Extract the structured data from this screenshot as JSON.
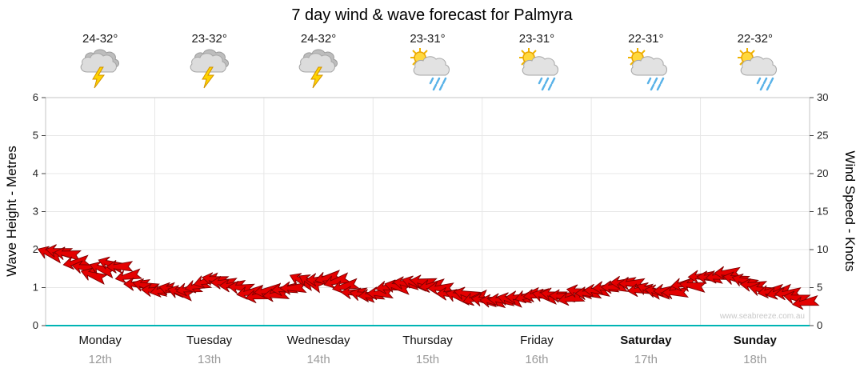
{
  "title": "7 day wind & wave forecast for Palmyra",
  "watermark": "www.seabreeze.com.au",
  "days": [
    {
      "name": "Monday",
      "date": "12th",
      "temp": "24-32°",
      "icon": "thunderstorm",
      "emphasis": false
    },
    {
      "name": "Tuesday",
      "date": "13th",
      "temp": "23-32°",
      "icon": "thunderstorm",
      "emphasis": false
    },
    {
      "name": "Wednesday",
      "date": "14th",
      "temp": "24-32°",
      "icon": "thunderstorm",
      "emphasis": false
    },
    {
      "name": "Thursday",
      "date": "15th",
      "temp": "23-31°",
      "icon": "sun-showers",
      "emphasis": false
    },
    {
      "name": "Friday",
      "date": "16th",
      "temp": "23-31°",
      "icon": "sun-showers",
      "emphasis": false
    },
    {
      "name": "Saturday",
      "date": "17th",
      "temp": "22-31°",
      "icon": "sun-showers",
      "emphasis": true
    },
    {
      "name": "Sunday",
      "date": "18th",
      "temp": "22-32°",
      "icon": "sun-showers",
      "emphasis": true
    }
  ],
  "axes": {
    "left_label": "Wave Height - Metres",
    "right_label": "Wind Speed - Knots",
    "left_ticks": [
      0,
      1,
      2,
      3,
      4,
      5,
      6
    ],
    "right_ticks": [
      0,
      5,
      10,
      15,
      20,
      25,
      30
    ]
  },
  "colors": {
    "arrow_fill": "#e40000",
    "arrow_stroke": "#7d0000",
    "baseline_teal": "#00b4b4",
    "grid": "#e7e7e7",
    "border": "#c4c4c4",
    "date_gray": "#9a9a9a",
    "watermark_gray": "#c8c8c8"
  },
  "chart_data": {
    "type": "line",
    "title": "7 day wind & wave forecast for Palmyra",
    "ylabel": "Wave Height - Metres",
    "y2label": "Wind Speed - Knots",
    "ylim": [
      0,
      6
    ],
    "y2lim": [
      0,
      30
    ],
    "grid": true,
    "legend": "none",
    "days": [
      "Monday 12th",
      "Tuesday 13th",
      "Wednesday 14th",
      "Thursday 15th",
      "Friday 16th",
      "Saturday 17th",
      "Sunday 18th"
    ],
    "samples_per_day": 8,
    "series": [
      {
        "name": "Wind speed",
        "unit": "knots",
        "values": [
          9.5,
          10.2,
          8.2,
          6.6,
          7.8,
          8.0,
          6.2,
          5.0,
          4.8,
          4.4,
          4.8,
          5.6,
          6.4,
          5.8,
          4.8,
          4.2,
          4.2,
          4.6,
          5.4,
          6.0,
          6.2,
          5.4,
          4.6,
          4.2,
          4.4,
          4.8,
          5.6,
          6.0,
          5.2,
          4.4,
          3.8,
          3.6,
          3.2,
          3.0,
          3.4,
          3.8,
          4.0,
          3.6,
          4.0,
          4.6,
          4.8,
          5.2,
          5.6,
          5.0,
          4.6,
          4.4,
          5.0,
          5.8,
          6.4,
          6.8,
          6.2,
          5.6,
          5.0,
          4.4,
          3.8,
          3.4
        ]
      },
      {
        "name": "Wind direction",
        "unit": "degrees screen heading (180 = pointing left)",
        "values": [
          200,
          185,
          170,
          190,
          205,
          180,
          165,
          185,
          175,
          190,
          180,
          165,
          185,
          195,
          180,
          170,
          185,
          175,
          190,
          200,
          180,
          170,
          185,
          195,
          170,
          185,
          195,
          180,
          165,
          180,
          190,
          175,
          185,
          195,
          180,
          170,
          185,
          190,
          175,
          185,
          190,
          180,
          170,
          185,
          195,
          185,
          175,
          190,
          180,
          170,
          185,
          195,
          185,
          175,
          190,
          180
        ]
      }
    ]
  }
}
